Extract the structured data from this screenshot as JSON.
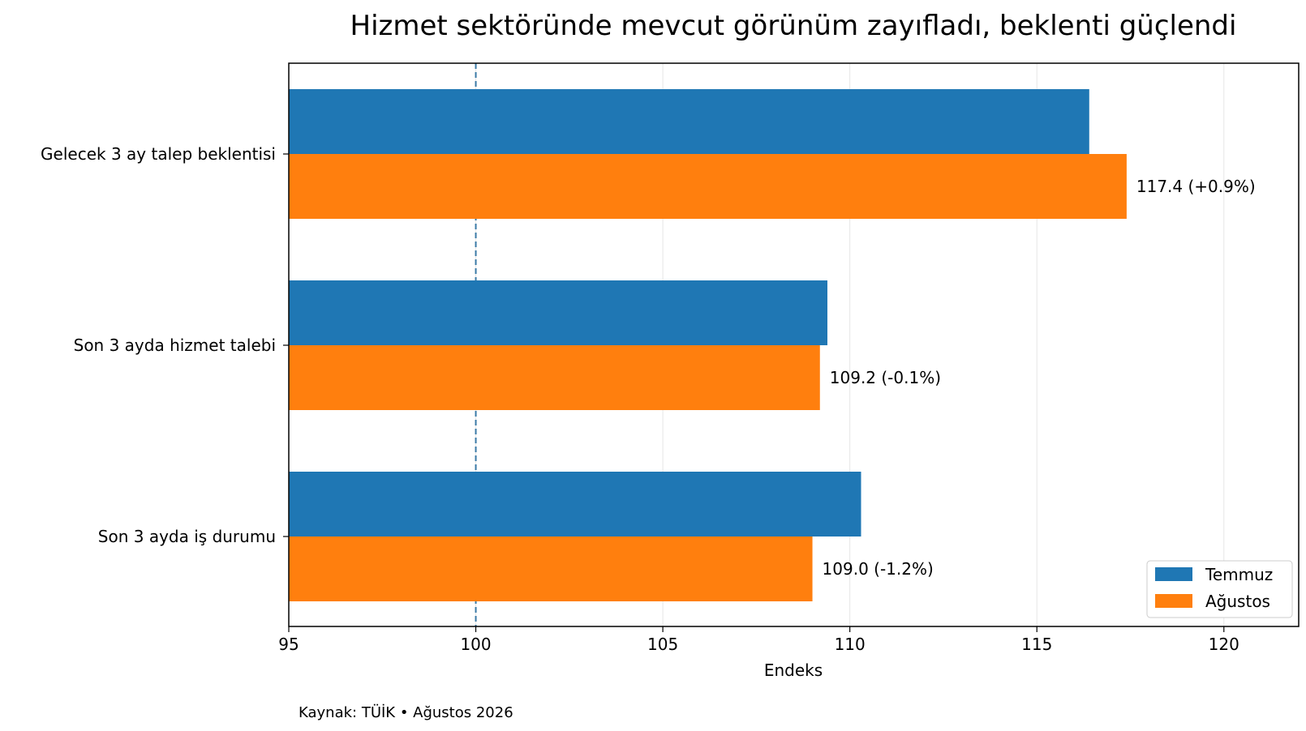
{
  "chart_data": {
    "type": "bar",
    "orientation": "horizontal",
    "title": "Hizmet sektöründe mevcut görünüm zayıfladı, beklenti güçlendi",
    "xlabel": "Endeks",
    "ylabel": "",
    "xlim": [
      95,
      122
    ],
    "xticks": [
      95,
      100,
      105,
      110,
      115,
      120
    ],
    "categories": [
      "Gelecek 3 ay talep beklentisi",
      "Son 3 ayda hizmet talebi",
      "Son 3 ayda iş durumu"
    ],
    "series": [
      {
        "name": "Temmuz",
        "color": "#1f77b4",
        "values": [
          116.4,
          109.4,
          110.3
        ]
      },
      {
        "name": "Ağustos",
        "color": "#ff7f0e",
        "values": [
          117.4,
          109.2,
          109.0
        ]
      }
    ],
    "data_labels": [
      "117.4  (+0.9%)",
      "109.2  (-0.1%)",
      "109.0  (-1.2%)"
    ],
    "reference_line": {
      "x": 100,
      "style": "dashed",
      "color": "#3b7aa6"
    },
    "grid": "vertical",
    "legend_position": "bottom-right",
    "source_note": "Kaynak: TÜİK • Ağustos 2026"
  }
}
